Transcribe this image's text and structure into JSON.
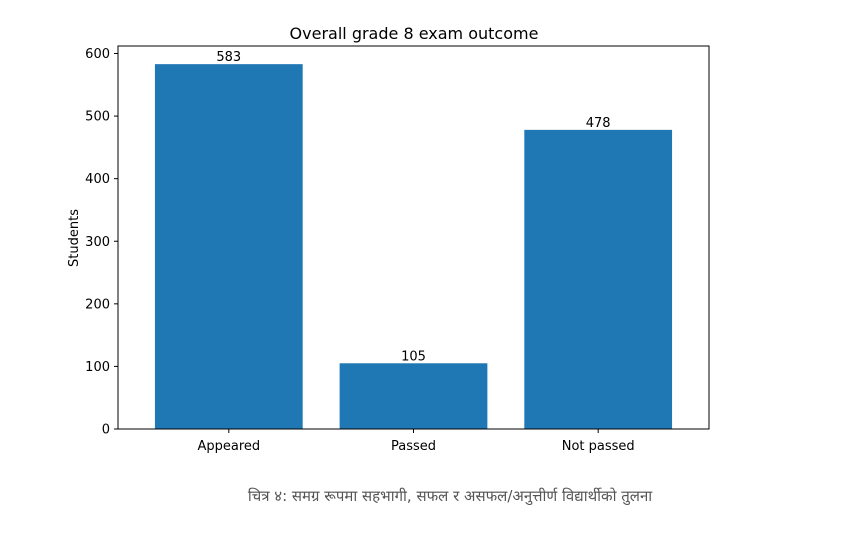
{
  "chart_data": {
    "type": "bar",
    "title": "Overall grade 8 exam outcome",
    "xlabel": "",
    "ylabel": "Students",
    "categories": [
      "Appeared",
      "Passed",
      "Not passed"
    ],
    "values": [
      583,
      105,
      478
    ],
    "data_labels": [
      "583",
      "105",
      "478"
    ],
    "ylim": [
      0,
      612
    ],
    "yticks": [
      0,
      100,
      200,
      300,
      400,
      500,
      600
    ],
    "grid": false,
    "color": "#1f77b4"
  },
  "caption": "चित्र ४: समग्र रूपमा सहभागी, सफल र असफल/अनुत्तीर्ण विद्यार्थीको तुलना"
}
